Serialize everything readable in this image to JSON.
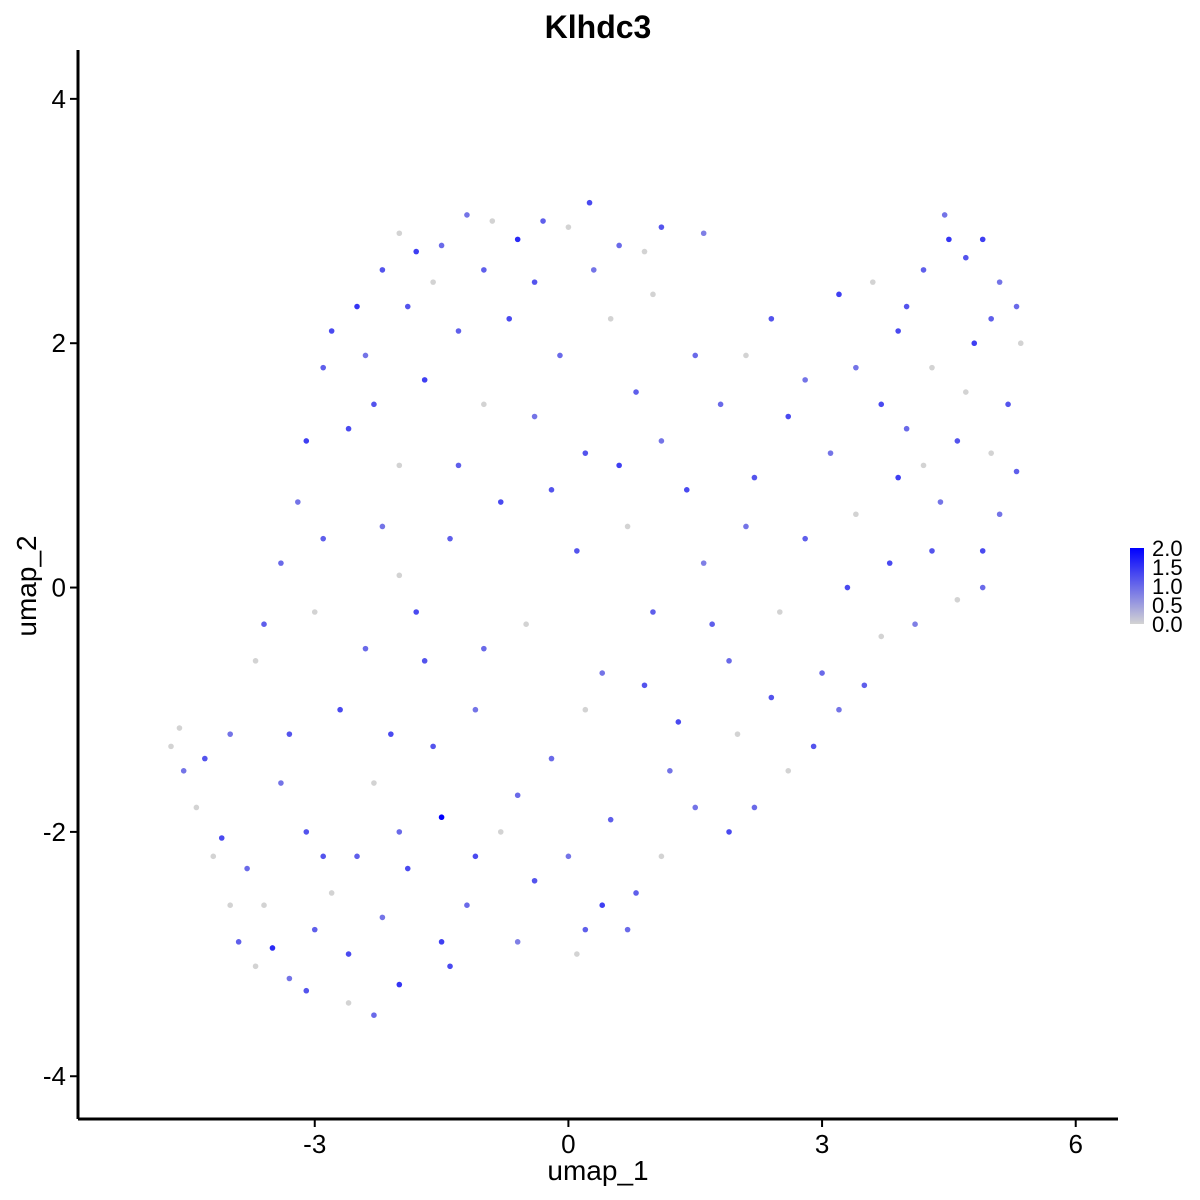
{
  "chart_data": {
    "type": "scatter",
    "title": "Klhdc3",
    "xlabel": "umap_1",
    "ylabel": "umap_2",
    "xlim": [
      -5.8,
      6.5
    ],
    "ylim": [
      -4.35,
      4.4
    ],
    "xticks": [
      -3,
      0,
      3,
      6
    ],
    "yticks": [
      -4,
      -2,
      0,
      2,
      4
    ],
    "grid": false,
    "color_scale": {
      "low": "#d3d3d3",
      "high": "#0000ff",
      "min": 0,
      "max": 2.0
    },
    "legend": {
      "position": "right",
      "labels": [
        "2.0",
        "1.5",
        "1.0",
        "0.5",
        "0.0"
      ],
      "values": [
        2.0,
        1.5,
        1.0,
        0.5,
        0.0
      ]
    },
    "points": [
      {
        "x": -4.7,
        "y": -1.3,
        "value": 0.0
      },
      {
        "x": -4.6,
        "y": -1.15,
        "value": 0.0
      },
      {
        "x": -4.55,
        "y": -1.5,
        "value": 0.9
      },
      {
        "x": -4.4,
        "y": -1.8,
        "value": 0.0
      },
      {
        "x": -4.2,
        "y": -2.2,
        "value": 0.0
      },
      {
        "x": -4.1,
        "y": -2.05,
        "value": 1.3
      },
      {
        "x": -4.0,
        "y": -2.6,
        "value": 0.0
      },
      {
        "x": -3.9,
        "y": -2.9,
        "value": 1.1
      },
      {
        "x": -3.7,
        "y": -3.1,
        "value": 0.0
      },
      {
        "x": -3.5,
        "y": -2.95,
        "value": 1.6
      },
      {
        "x": -3.3,
        "y": -3.2,
        "value": 0.9
      },
      {
        "x": -3.1,
        "y": -3.3,
        "value": 1.2
      },
      {
        "x": -2.6,
        "y": -3.4,
        "value": 0.0
      },
      {
        "x": -2.3,
        "y": -3.5,
        "value": 1.0
      },
      {
        "x": -2.0,
        "y": -3.25,
        "value": 1.5
      },
      {
        "x": -1.4,
        "y": -3.1,
        "value": 1.3
      },
      {
        "x": -0.6,
        "y": -2.9,
        "value": 0.8
      },
      {
        "x": 0.1,
        "y": -3.0,
        "value": 0.0
      },
      {
        "x": 0.7,
        "y": -2.8,
        "value": 1.0
      },
      {
        "x": -4.3,
        "y": -1.4,
        "value": 1.2
      },
      {
        "x": -4.0,
        "y": -1.2,
        "value": 0.9
      },
      {
        "x": -3.7,
        "y": -0.6,
        "value": 0.0
      },
      {
        "x": -3.6,
        "y": -0.3,
        "value": 1.1
      },
      {
        "x": -3.4,
        "y": 0.2,
        "value": 1.0
      },
      {
        "x": -3.2,
        "y": 0.7,
        "value": 0.9
      },
      {
        "x": -3.1,
        "y": 1.2,
        "value": 1.4
      },
      {
        "x": -2.9,
        "y": 1.8,
        "value": 1.1
      },
      {
        "x": -2.8,
        "y": 2.1,
        "value": 1.3
      },
      {
        "x": -2.5,
        "y": 2.3,
        "value": 1.5
      },
      {
        "x": -2.2,
        "y": 2.6,
        "value": 1.2
      },
      {
        "x": -2.0,
        "y": 2.9,
        "value": 0.0
      },
      {
        "x": -1.8,
        "y": 2.75,
        "value": 1.4
      },
      {
        "x": -1.5,
        "y": 2.8,
        "value": 1.0
      },
      {
        "x": -1.2,
        "y": 3.05,
        "value": 0.9
      },
      {
        "x": -0.9,
        "y": 3.0,
        "value": 0.0
      },
      {
        "x": -0.6,
        "y": 2.85,
        "value": 1.6
      },
      {
        "x": -0.3,
        "y": 3.0,
        "value": 1.1
      },
      {
        "x": 0.0,
        "y": 2.95,
        "value": 0.0
      },
      {
        "x": 0.25,
        "y": 3.15,
        "value": 1.3
      },
      {
        "x": 0.6,
        "y": 2.8,
        "value": 1.0
      },
      {
        "x": 0.9,
        "y": 2.75,
        "value": 0.0
      },
      {
        "x": 1.1,
        "y": 2.95,
        "value": 1.2
      },
      {
        "x": 1.6,
        "y": 2.9,
        "value": 0.8
      },
      {
        "x": -2.3,
        "y": 1.5,
        "value": 1.2
      },
      {
        "x": -2.0,
        "y": 1.0,
        "value": 0.0
      },
      {
        "x": -1.7,
        "y": 1.7,
        "value": 1.4
      },
      {
        "x": -1.3,
        "y": 2.1,
        "value": 1.1
      },
      {
        "x": -1.0,
        "y": 1.5,
        "value": 0.0
      },
      {
        "x": -0.7,
        "y": 2.2,
        "value": 1.3
      },
      {
        "x": -0.4,
        "y": 1.4,
        "value": 0.9
      },
      {
        "x": -0.1,
        "y": 1.9,
        "value": 1.0
      },
      {
        "x": 0.2,
        "y": 1.1,
        "value": 1.2
      },
      {
        "x": 0.5,
        "y": 2.2,
        "value": 0.0
      },
      {
        "x": 0.8,
        "y": 1.6,
        "value": 1.1
      },
      {
        "x": 1.1,
        "y": 1.2,
        "value": 0.9
      },
      {
        "x": 1.4,
        "y": 0.8,
        "value": 1.3
      },
      {
        "x": 1.8,
        "y": 1.5,
        "value": 1.0
      },
      {
        "x": 2.1,
        "y": 1.9,
        "value": 0.0
      },
      {
        "x": 2.4,
        "y": 2.2,
        "value": 1.2
      },
      {
        "x": 2.8,
        "y": 1.7,
        "value": 0.9
      },
      {
        "x": 3.2,
        "y": 2.4,
        "value": 1.4
      },
      {
        "x": 3.6,
        "y": 2.5,
        "value": 0.0
      },
      {
        "x": 3.9,
        "y": 2.1,
        "value": 1.3
      },
      {
        "x": 4.2,
        "y": 2.6,
        "value": 1.1
      },
      {
        "x": 4.45,
        "y": 3.05,
        "value": 0.9
      },
      {
        "x": 4.5,
        "y": 2.85,
        "value": 1.5
      },
      {
        "x": 4.7,
        "y": 2.7,
        "value": 1.2
      },
      {
        "x": 4.9,
        "y": 2.85,
        "value": 1.4
      },
      {
        "x": 5.1,
        "y": 2.5,
        "value": 0.9
      },
      {
        "x": 5.3,
        "y": 2.3,
        "value": 1.0
      },
      {
        "x": 5.35,
        "y": 2.0,
        "value": 0.0
      },
      {
        "x": 5.2,
        "y": 1.5,
        "value": 1.2
      },
      {
        "x": 5.0,
        "y": 1.1,
        "value": 0.0
      },
      {
        "x": 5.3,
        "y": 0.95,
        "value": 1.1
      },
      {
        "x": 5.1,
        "y": 0.6,
        "value": 0.9
      },
      {
        "x": 4.9,
        "y": 0.3,
        "value": 1.3
      },
      {
        "x": 4.9,
        "y": 0.0,
        "value": 1.0
      },
      {
        "x": 4.6,
        "y": -0.1,
        "value": 0.0
      },
      {
        "x": 4.3,
        "y": 0.3,
        "value": 1.2
      },
      {
        "x": 4.1,
        "y": -0.3,
        "value": 0.8
      },
      {
        "x": 3.9,
        "y": 0.9,
        "value": 1.4
      },
      {
        "x": 3.7,
        "y": -0.4,
        "value": 0.0
      },
      {
        "x": 3.5,
        "y": -0.8,
        "value": 1.1
      },
      {
        "x": 3.2,
        "y": -1.0,
        "value": 0.9
      },
      {
        "x": 2.9,
        "y": -1.3,
        "value": 1.2
      },
      {
        "x": 2.6,
        "y": -1.5,
        "value": 0.0
      },
      {
        "x": 2.2,
        "y": -1.8,
        "value": 1.0
      },
      {
        "x": 1.9,
        "y": -2.0,
        "value": 1.3
      },
      {
        "x": 1.5,
        "y": -1.8,
        "value": 0.9
      },
      {
        "x": 1.1,
        "y": -2.2,
        "value": 0.0
      },
      {
        "x": 0.8,
        "y": -2.5,
        "value": 1.1
      },
      {
        "x": 0.4,
        "y": -2.6,
        "value": 1.4
      },
      {
        "x": 0.0,
        "y": -2.2,
        "value": 0.9
      },
      {
        "x": -0.4,
        "y": -2.4,
        "value": 1.2
      },
      {
        "x": -0.8,
        "y": -2.0,
        "value": 0.0
      },
      {
        "x": -1.2,
        "y": -2.6,
        "value": 1.0
      },
      {
        "x": -1.5,
        "y": -1.88,
        "value": 2.0
      },
      {
        "x": -1.9,
        "y": -2.3,
        "value": 1.3
      },
      {
        "x": -2.2,
        "y": -2.7,
        "value": 0.9
      },
      {
        "x": -2.5,
        "y": -2.2,
        "value": 1.1
      },
      {
        "x": -2.8,
        "y": -2.5,
        "value": 0.0
      },
      {
        "x": -3.1,
        "y": -2.0,
        "value": 1.2
      },
      {
        "x": -3.4,
        "y": -1.6,
        "value": 0.9
      },
      {
        "x": -2.7,
        "y": -1.0,
        "value": 1.3
      },
      {
        "x": -2.4,
        "y": -0.5,
        "value": 1.0
      },
      {
        "x": -2.0,
        "y": 0.1,
        "value": 0.0
      },
      {
        "x": -1.7,
        "y": -0.6,
        "value": 1.2
      },
      {
        "x": -1.4,
        "y": 0.4,
        "value": 1.1
      },
      {
        "x": -1.1,
        "y": -1.0,
        "value": 0.9
      },
      {
        "x": -0.8,
        "y": 0.7,
        "value": 1.3
      },
      {
        "x": -0.5,
        "y": -0.3,
        "value": 0.0
      },
      {
        "x": -0.2,
        "y": -1.4,
        "value": 1.0
      },
      {
        "x": 0.1,
        "y": 0.3,
        "value": 1.2
      },
      {
        "x": 0.4,
        "y": -0.7,
        "value": 0.9
      },
      {
        "x": 0.7,
        "y": 0.5,
        "value": 0.0
      },
      {
        "x": 1.0,
        "y": -0.2,
        "value": 1.1
      },
      {
        "x": 1.3,
        "y": -1.1,
        "value": 1.3
      },
      {
        "x": 1.6,
        "y": 0.2,
        "value": 0.8
      },
      {
        "x": 1.9,
        "y": -0.6,
        "value": 1.0
      },
      {
        "x": 2.2,
        "y": 0.9,
        "value": 1.2
      },
      {
        "x": 2.5,
        "y": -0.2,
        "value": 0.0
      },
      {
        "x": 2.8,
        "y": 0.4,
        "value": 1.1
      },
      {
        "x": 3.1,
        "y": 1.1,
        "value": 0.9
      },
      {
        "x": 3.4,
        "y": 0.6,
        "value": 0.0
      },
      {
        "x": 3.7,
        "y": 1.5,
        "value": 1.3
      },
      {
        "x": 4.0,
        "y": 1.3,
        "value": 1.0
      },
      {
        "x": 4.3,
        "y": 1.8,
        "value": 0.0
      },
      {
        "x": 4.6,
        "y": 1.2,
        "value": 1.2
      },
      {
        "x": 4.8,
        "y": 2.0,
        "value": 1.4
      },
      {
        "x": -3.0,
        "y": -2.8,
        "value": 1.1
      },
      {
        "x": -2.6,
        "y": -3.0,
        "value": 1.3
      },
      {
        "x": -3.8,
        "y": -2.3,
        "value": 1.0
      },
      {
        "x": -3.3,
        "y": -1.2,
        "value": 1.2
      },
      {
        "x": -3.0,
        "y": -0.2,
        "value": 0.0
      },
      {
        "x": -2.9,
        "y": 0.4,
        "value": 1.1
      },
      {
        "x": -2.6,
        "y": 1.3,
        "value": 1.3
      },
      {
        "x": -2.4,
        "y": 1.9,
        "value": 0.9
      },
      {
        "x": -1.9,
        "y": 2.3,
        "value": 1.2
      },
      {
        "x": -1.6,
        "y": 2.5,
        "value": 0.0
      },
      {
        "x": -1.0,
        "y": 2.6,
        "value": 1.1
      },
      {
        "x": -0.4,
        "y": 2.5,
        "value": 1.2
      },
      {
        "x": 0.3,
        "y": 2.6,
        "value": 0.9
      },
      {
        "x": 0.6,
        "y": 1.0,
        "value": 1.4
      },
      {
        "x": -0.6,
        "y": -1.7,
        "value": 1.0
      },
      {
        "x": -1.6,
        "y": -1.3,
        "value": 1.2
      },
      {
        "x": -2.3,
        "y": -1.6,
        "value": 0.0
      },
      {
        "x": -2.1,
        "y": -1.2,
        "value": 1.3
      },
      {
        "x": 0.5,
        "y": -1.9,
        "value": 1.1
      },
      {
        "x": 1.2,
        "y": -1.5,
        "value": 0.9
      },
      {
        "x": 2.0,
        "y": -1.2,
        "value": 0.0
      },
      {
        "x": 2.4,
        "y": -0.9,
        "value": 1.2
      },
      {
        "x": 3.0,
        "y": -0.7,
        "value": 1.0
      },
      {
        "x": 3.8,
        "y": 0.2,
        "value": 1.3
      },
      {
        "x": 4.4,
        "y": 0.7,
        "value": 0.9
      },
      {
        "x": 4.7,
        "y": 1.6,
        "value": 0.0
      },
      {
        "x": 5.0,
        "y": 2.2,
        "value": 1.1
      },
      {
        "x": 4.0,
        "y": 2.3,
        "value": 1.2
      },
      {
        "x": 3.4,
        "y": 1.8,
        "value": 0.9
      },
      {
        "x": 2.6,
        "y": 1.4,
        "value": 1.3
      },
      {
        "x": 1.5,
        "y": 1.9,
        "value": 1.0
      },
      {
        "x": 1.0,
        "y": 2.4,
        "value": 0.0
      },
      {
        "x": -0.2,
        "y": 0.8,
        "value": 1.2
      },
      {
        "x": -1.3,
        "y": 1.0,
        "value": 1.1
      },
      {
        "x": -2.2,
        "y": 0.5,
        "value": 0.9
      },
      {
        "x": -1.8,
        "y": -0.2,
        "value": 1.3
      },
      {
        "x": -1.0,
        "y": -0.5,
        "value": 1.0
      },
      {
        "x": 0.2,
        "y": -1.0,
        "value": 0.0
      },
      {
        "x": 0.9,
        "y": -0.8,
        "value": 1.2
      },
      {
        "x": 1.7,
        "y": -0.3,
        "value": 1.1
      },
      {
        "x": 2.1,
        "y": 0.5,
        "value": 0.9
      },
      {
        "x": 3.3,
        "y": 0.0,
        "value": 1.3
      },
      {
        "x": 4.2,
        "y": 1.0,
        "value": 0.0
      },
      {
        "x": -1.5,
        "y": -2.9,
        "value": 1.4
      },
      {
        "x": -3.6,
        "y": -2.6,
        "value": 0.0
      },
      {
        "x": -2.9,
        "y": -2.2,
        "value": 1.2
      },
      {
        "x": -2.0,
        "y": -2.0,
        "value": 1.0
      },
      {
        "x": -1.1,
        "y": -2.2,
        "value": 1.3
      },
      {
        "x": 0.2,
        "y": -2.8,
        "value": 1.1
      }
    ]
  }
}
